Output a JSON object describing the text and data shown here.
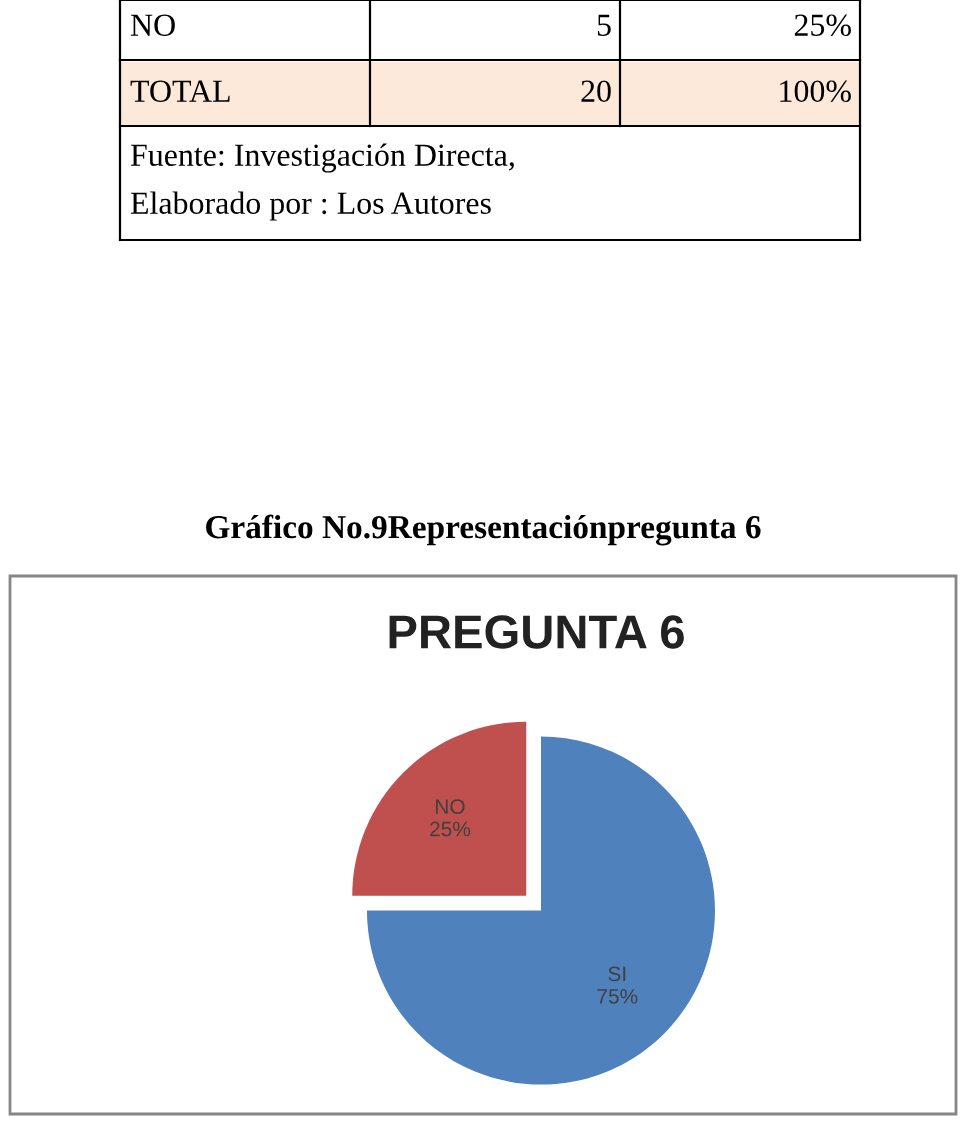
{
  "chart_data": {
    "type": "pie",
    "title": "PREGUNTA 6",
    "categories": [
      "SI",
      "NO"
    ],
    "values": [
      75,
      25
    ],
    "value_labels": [
      "75%",
      "25%"
    ],
    "colors": [
      "#4f81bd",
      "#c0504d"
    ],
    "annotations": [
      "NO",
      "5",
      "25%",
      "TOTAL",
      "20",
      "100%",
      "Fuente: Investigación Directa,",
      "Elaborado por : Los Autores",
      "Gráfico No.9Representaciónpregunta 6"
    ]
  }
}
